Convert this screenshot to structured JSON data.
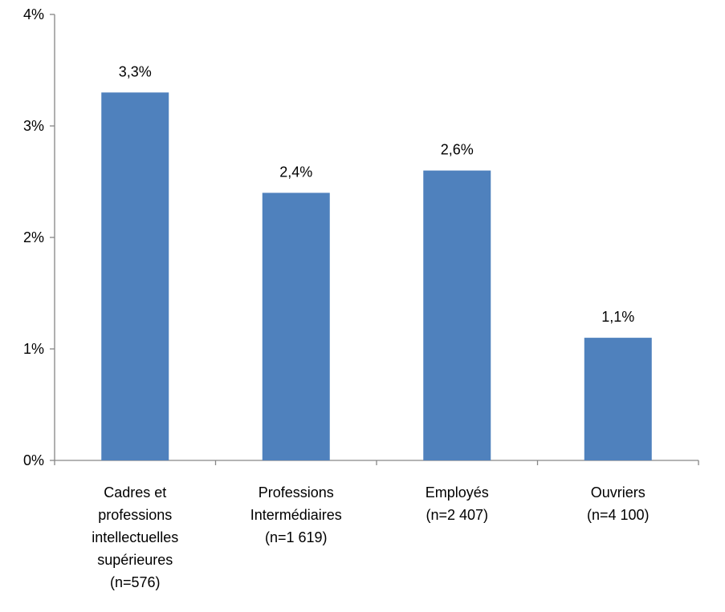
{
  "chart_data": {
    "type": "bar",
    "title": "",
    "xlabel": "",
    "ylabel": "",
    "categories": [
      [
        "Cadres et",
        "professions",
        "intellectuelles",
        "supérieures",
        "(n=576)"
      ],
      [
        "Professions",
        "Intermédiaires",
        "(n=1 619)"
      ],
      [
        "Employés",
        "(n=2 407)"
      ],
      [
        "Ouvriers",
        "(n=4 100)"
      ]
    ],
    "values": [
      3.3,
      2.4,
      2.6,
      1.1
    ],
    "data_labels": [
      "3,3%",
      "2,4%",
      "2,6%",
      "1,1%"
    ],
    "ylim": [
      0,
      4
    ],
    "yticks": [
      0,
      1,
      2,
      3,
      4
    ],
    "ytick_labels": [
      "0%",
      "1%",
      "2%",
      "3%",
      "4%"
    ],
    "grid": false,
    "legend": "none",
    "bar_color": "#4f81bd",
    "axis_color": "#868686"
  }
}
